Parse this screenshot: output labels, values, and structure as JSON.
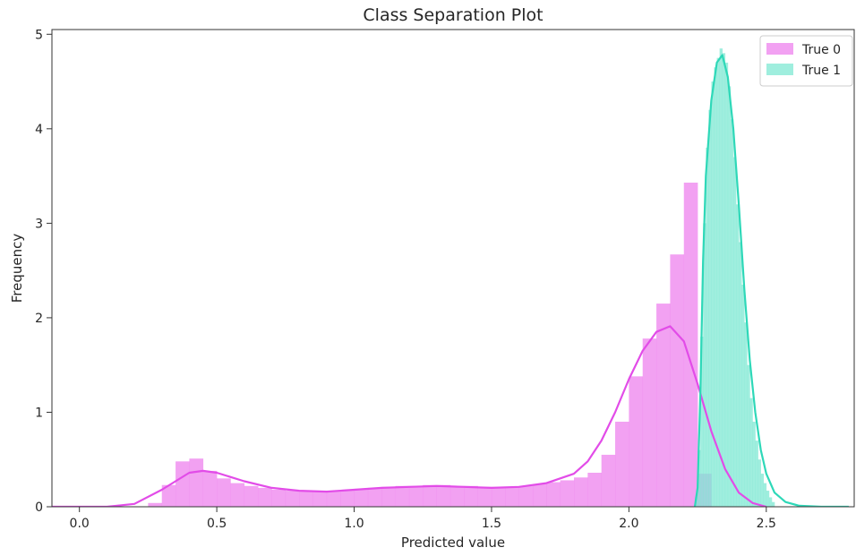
{
  "chart_data": {
    "type": "histogram",
    "title": "Class Separation Plot",
    "xlabel": "Predicted value",
    "ylabel": "Frequency",
    "xlim": [
      -0.1,
      2.82
    ],
    "ylim": [
      0,
      5.05
    ],
    "xticks": [
      0.0,
      0.5,
      1.0,
      1.5,
      2.0,
      2.5
    ],
    "xtick_labels": [
      "0.0",
      "0.5",
      "1.0",
      "1.5",
      "2.0",
      "2.5"
    ],
    "yticks": [
      0,
      1,
      2,
      3,
      4,
      5
    ],
    "ytick_labels": [
      "0",
      "1",
      "2",
      "3",
      "4",
      "5"
    ],
    "grid": false,
    "legend_position": "top-right",
    "legend": [
      "True 0",
      "True 1"
    ],
    "series": [
      {
        "name": "True 0",
        "color": "#ee82ee",
        "kde_color": "#e24ce8",
        "bin_width": 0.05,
        "bins": [
          {
            "x": 0.25,
            "y": 0.04
          },
          {
            "x": 0.3,
            "y": 0.23
          },
          {
            "x": 0.35,
            "y": 0.48
          },
          {
            "x": 0.4,
            "y": 0.51
          },
          {
            "x": 0.45,
            "y": 0.38
          },
          {
            "x": 0.5,
            "y": 0.3
          },
          {
            "x": 0.55,
            "y": 0.25
          },
          {
            "x": 0.6,
            "y": 0.22
          },
          {
            "x": 0.65,
            "y": 0.2
          },
          {
            "x": 0.7,
            "y": 0.18
          },
          {
            "x": 0.75,
            "y": 0.17
          },
          {
            "x": 0.8,
            "y": 0.16
          },
          {
            "x": 0.85,
            "y": 0.16
          },
          {
            "x": 0.9,
            "y": 0.17
          },
          {
            "x": 0.95,
            "y": 0.18
          },
          {
            "x": 1.0,
            "y": 0.19
          },
          {
            "x": 1.05,
            "y": 0.2
          },
          {
            "x": 1.1,
            "y": 0.21
          },
          {
            "x": 1.15,
            "y": 0.22
          },
          {
            "x": 1.2,
            "y": 0.22
          },
          {
            "x": 1.25,
            "y": 0.23
          },
          {
            "x": 1.3,
            "y": 0.23
          },
          {
            "x": 1.35,
            "y": 0.22
          },
          {
            "x": 1.4,
            "y": 0.22
          },
          {
            "x": 1.45,
            "y": 0.21
          },
          {
            "x": 1.5,
            "y": 0.21
          },
          {
            "x": 1.55,
            "y": 0.21
          },
          {
            "x": 1.6,
            "y": 0.22
          },
          {
            "x": 1.65,
            "y": 0.24
          },
          {
            "x": 1.7,
            "y": 0.26
          },
          {
            "x": 1.75,
            "y": 0.28
          },
          {
            "x": 1.8,
            "y": 0.31
          },
          {
            "x": 1.85,
            "y": 0.36
          },
          {
            "x": 1.9,
            "y": 0.55
          },
          {
            "x": 1.95,
            "y": 0.9
          },
          {
            "x": 2.0,
            "y": 1.38
          },
          {
            "x": 2.05,
            "y": 1.78
          },
          {
            "x": 2.1,
            "y": 2.15
          },
          {
            "x": 2.15,
            "y": 2.67
          },
          {
            "x": 2.2,
            "y": 3.43
          },
          {
            "x": 2.25,
            "y": 0.35
          }
        ],
        "kde": [
          [
            -0.1,
            0.0
          ],
          [
            0.1,
            0.0
          ],
          [
            0.2,
            0.03
          ],
          [
            0.3,
            0.18
          ],
          [
            0.4,
            0.36
          ],
          [
            0.45,
            0.38
          ],
          [
            0.5,
            0.36
          ],
          [
            0.6,
            0.27
          ],
          [
            0.7,
            0.2
          ],
          [
            0.8,
            0.17
          ],
          [
            0.9,
            0.16
          ],
          [
            1.0,
            0.18
          ],
          [
            1.1,
            0.2
          ],
          [
            1.2,
            0.21
          ],
          [
            1.3,
            0.22
          ],
          [
            1.4,
            0.21
          ],
          [
            1.5,
            0.2
          ],
          [
            1.6,
            0.21
          ],
          [
            1.7,
            0.25
          ],
          [
            1.8,
            0.35
          ],
          [
            1.85,
            0.48
          ],
          [
            1.9,
            0.7
          ],
          [
            1.95,
            1.0
          ],
          [
            2.0,
            1.35
          ],
          [
            2.05,
            1.65
          ],
          [
            2.1,
            1.85
          ],
          [
            2.15,
            1.91
          ],
          [
            2.2,
            1.75
          ],
          [
            2.25,
            1.3
          ],
          [
            2.3,
            0.8
          ],
          [
            2.35,
            0.4
          ],
          [
            2.4,
            0.15
          ],
          [
            2.45,
            0.04
          ],
          [
            2.5,
            0.0
          ]
        ]
      },
      {
        "name": "True 1",
        "color": "#7fe8d3",
        "kde_color": "#2ed8b8",
        "bin_width": 0.01,
        "bins": [
          {
            "x": 2.24,
            "y": 0.1
          },
          {
            "x": 2.25,
            "y": 0.6
          },
          {
            "x": 2.26,
            "y": 1.8
          },
          {
            "x": 2.27,
            "y": 3.0
          },
          {
            "x": 2.28,
            "y": 3.8
          },
          {
            "x": 2.29,
            "y": 4.2
          },
          {
            "x": 2.3,
            "y": 4.5
          },
          {
            "x": 2.31,
            "y": 4.65
          },
          {
            "x": 2.32,
            "y": 4.75
          },
          {
            "x": 2.33,
            "y": 4.85
          },
          {
            "x": 2.34,
            "y": 4.8
          },
          {
            "x": 2.35,
            "y": 4.7
          },
          {
            "x": 2.36,
            "y": 4.45
          },
          {
            "x": 2.37,
            "y": 4.1
          },
          {
            "x": 2.38,
            "y": 3.7
          },
          {
            "x": 2.39,
            "y": 3.2
          },
          {
            "x": 2.4,
            "y": 2.8
          },
          {
            "x": 2.41,
            "y": 2.35
          },
          {
            "x": 2.42,
            "y": 1.95
          },
          {
            "x": 2.43,
            "y": 1.5
          },
          {
            "x": 2.44,
            "y": 1.15
          },
          {
            "x": 2.45,
            "y": 0.9
          },
          {
            "x": 2.46,
            "y": 0.7
          },
          {
            "x": 2.47,
            "y": 0.5
          },
          {
            "x": 2.48,
            "y": 0.35
          },
          {
            "x": 2.49,
            "y": 0.25
          },
          {
            "x": 2.5,
            "y": 0.17
          },
          {
            "x": 2.51,
            "y": 0.1
          },
          {
            "x": 2.52,
            "y": 0.05
          }
        ],
        "kde": [
          [
            2.24,
            0.0
          ],
          [
            2.25,
            0.2
          ],
          [
            2.26,
            1.2
          ],
          [
            2.27,
            2.6
          ],
          [
            2.28,
            3.5
          ],
          [
            2.3,
            4.3
          ],
          [
            2.32,
            4.7
          ],
          [
            2.34,
            4.78
          ],
          [
            2.36,
            4.55
          ],
          [
            2.38,
            4.0
          ],
          [
            2.4,
            3.2
          ],
          [
            2.42,
            2.3
          ],
          [
            2.44,
            1.55
          ],
          [
            2.46,
            1.0
          ],
          [
            2.48,
            0.6
          ],
          [
            2.5,
            0.35
          ],
          [
            2.53,
            0.15
          ],
          [
            2.57,
            0.05
          ],
          [
            2.62,
            0.01
          ],
          [
            2.7,
            0.0
          ],
          [
            2.8,
            0.0
          ]
        ]
      }
    ]
  }
}
